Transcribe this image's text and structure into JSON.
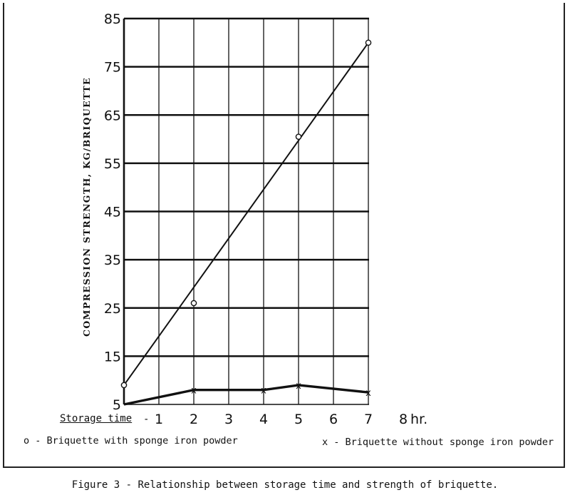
{
  "chart_data": {
    "type": "line",
    "xlabel": "Storage time",
    "xunit": "hr.",
    "ylabel": "COMPRESSION STRENGTH, KG/BRIQUETTE",
    "xticks": [
      "1",
      "2",
      "3",
      "4",
      "5",
      "6",
      "7",
      "8"
    ],
    "yticks": [
      "5",
      "15",
      "25",
      "35",
      "45",
      "55",
      "65",
      "75",
      "85"
    ],
    "xlim": [
      0,
      8
    ],
    "ylim": [
      5,
      85
    ],
    "grid": true,
    "series": [
      {
        "name": "Briquette with sponge iron powder",
        "marker": "o",
        "points": [
          [
            0,
            9
          ],
          [
            2,
            26
          ],
          [
            5,
            60.5
          ],
          [
            7,
            80
          ]
        ],
        "fit_line": [
          [
            0,
            9
          ],
          [
            7,
            80
          ]
        ],
        "color": "#111111"
      },
      {
        "name": "Briquette without sponge iron powder",
        "marker": "x",
        "points": [
          [
            0,
            5
          ],
          [
            2,
            8
          ],
          [
            4,
            8
          ],
          [
            5,
            9
          ],
          [
            7,
            7.5
          ]
        ],
        "color": "#111111"
      }
    ]
  },
  "legend": {
    "with_marker": "o",
    "with_label": "Briquette with sponge iron powder",
    "without_marker": "x",
    "without_label": "Briquette without sponge iron powder"
  },
  "caption": "Figure 3 - Relationship between storage time and strength of briquette."
}
